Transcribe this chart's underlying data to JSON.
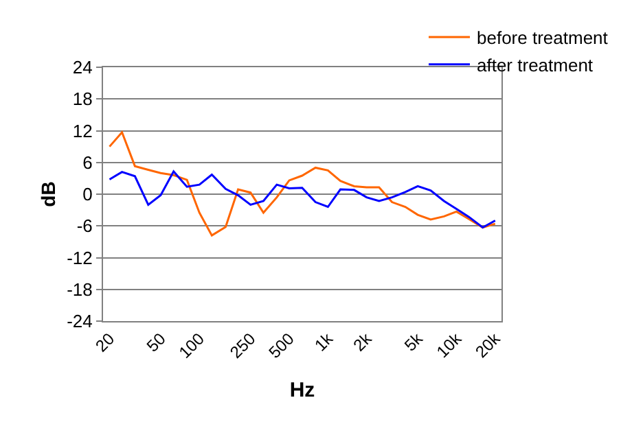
{
  "chart_data": {
    "type": "line",
    "xlabel": "Hz",
    "ylabel": "dB",
    "x": [
      20,
      25,
      31.5,
      40,
      50,
      63,
      80,
      100,
      125,
      160,
      200,
      250,
      315,
      400,
      500,
      630,
      800,
      1000,
      1250,
      1600,
      2000,
      2500,
      3150,
      4000,
      5000,
      6300,
      8000,
      10000,
      12500,
      16000,
      20000
    ],
    "series": [
      {
        "name": "before treatment",
        "color": "#ff6600",
        "values": [
          9.0,
          11.7,
          5.3,
          4.6,
          4.0,
          3.6,
          2.7,
          -3.5,
          -7.8,
          -6.2,
          0.9,
          0.3,
          -3.5,
          -0.6,
          2.6,
          3.5,
          5.0,
          4.5,
          2.5,
          1.5,
          1.3,
          1.3,
          -1.5,
          -2.4,
          -3.9,
          -4.8,
          -4.2,
          -3.3,
          -4.7,
          -6.3,
          -5.6
        ]
      },
      {
        "name": "after treatment",
        "color": "#0000ff",
        "values": [
          2.8,
          4.2,
          3.4,
          -2.0,
          -0.2,
          4.3,
          1.4,
          1.8,
          3.7,
          1.0,
          -0.2,
          -2.0,
          -1.3,
          1.8,
          1.1,
          1.2,
          -1.5,
          -2.4,
          0.9,
          0.8,
          -0.6,
          -1.3,
          -0.6,
          0.4,
          1.5,
          0.7,
          -1.3,
          -2.8,
          -4.3,
          -6.3,
          -5.0
        ]
      }
    ],
    "log": "x",
    "xlim": [
      17.8,
      22400
    ],
    "xticks": [
      20,
      50,
      100,
      250,
      500,
      {
        "value": 1000,
        "label": "1k"
      },
      {
        "value": 2000,
        "label": "2k"
      },
      {
        "value": 5000,
        "label": "5k"
      },
      {
        "value": 10000,
        "label": "10k"
      },
      {
        "value": 20000,
        "label": "20k"
      }
    ],
    "ylim": [
      -24,
      24
    ],
    "yticks": [
      -24,
      -18,
      -12,
      -6,
      0,
      6,
      12,
      18,
      24
    ],
    "grid": "y",
    "legend": "top right",
    "marker": "none",
    "line_style": "solid"
  }
}
